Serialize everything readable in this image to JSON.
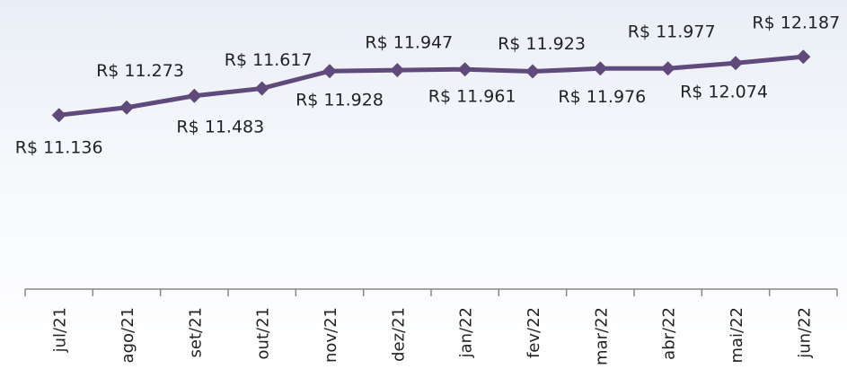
{
  "chart_data": {
    "type": "line",
    "categories": [
      "jul/21",
      "ago/21",
      "set/21",
      "out/21",
      "nov/21",
      "dez/21",
      "jan/22",
      "fev/22",
      "mar/22",
      "abr/22",
      "mai/22",
      "jun/22"
    ],
    "series": [
      {
        "color": "#604a7b",
        "values": [
          11136,
          11273,
          11483,
          11617,
          11928,
          11947,
          11961,
          11923,
          11976,
          11977,
          12074,
          12187
        ],
        "value_labels": [
          "R$ 11.136",
          "R$ 11.273",
          "R$ 11.483",
          "R$ 11.617",
          "R$ 11.928",
          "R$ 11.947",
          "R$ 11.961",
          "R$ 11.923",
          "R$ 11.976",
          "R$ 11.977",
          "R$ 12.074",
          "R$ 12.187"
        ]
      }
    ],
    "ylim": [
      8000,
      13000
    ]
  }
}
